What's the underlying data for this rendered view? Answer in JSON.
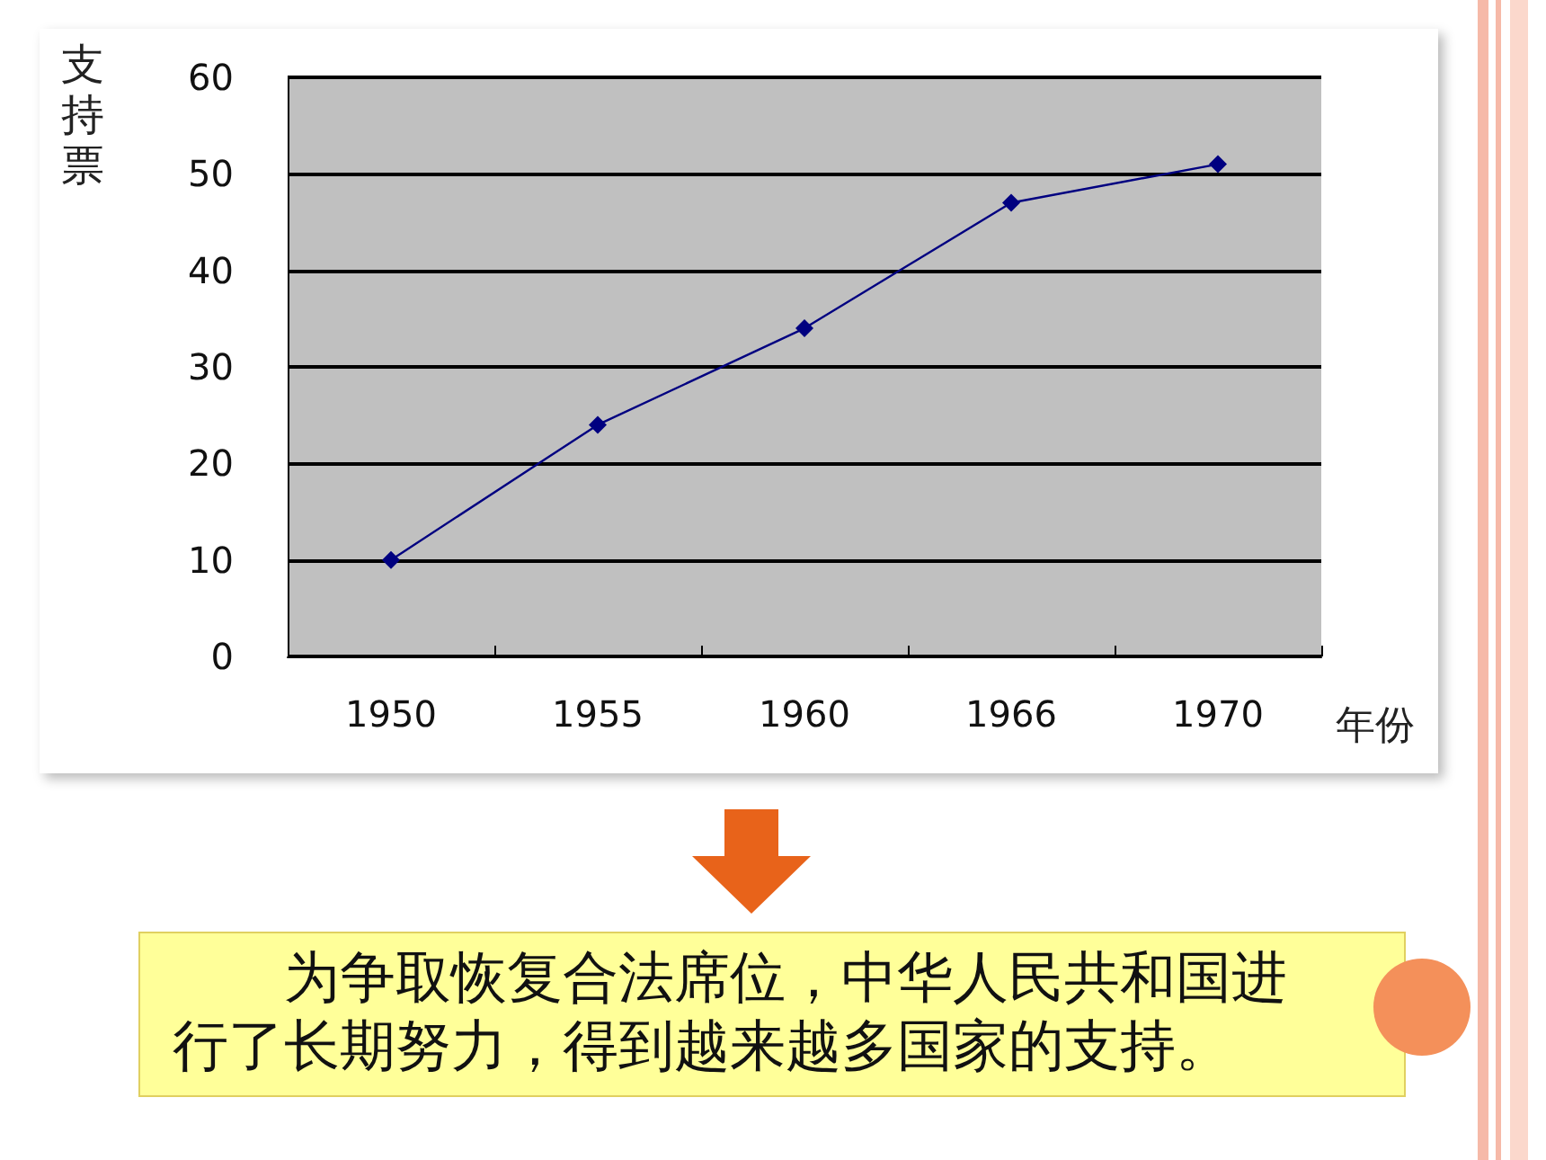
{
  "chart_data": {
    "type": "line",
    "ylabel": "支持票",
    "xlabel": "年份",
    "categories": [
      "1950",
      "1955",
      "1960",
      "1966",
      "1970"
    ],
    "series": [
      {
        "color": "#000080",
        "values": [
          10,
          24,
          34,
          47,
          51
        ]
      }
    ],
    "ylim": [
      0,
      60
    ],
    "yticks": [
      0,
      10,
      20,
      30,
      40,
      50,
      60
    ],
    "grid": "y",
    "marker": "diamond",
    "line_style": "solid",
    "annotations": [
      "为争取恢复合法席位，中华人民共和国进行了长期努力，得到越来越多国家的支持。"
    ]
  }
}
